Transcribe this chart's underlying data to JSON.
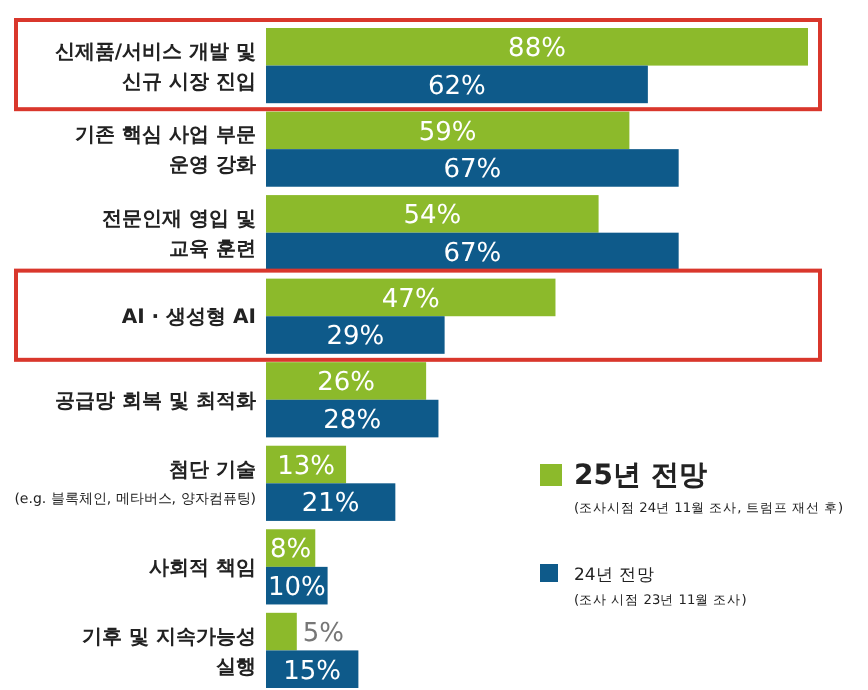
{
  "chart_data": {
    "type": "bar",
    "orientation": "horizontal",
    "categories": [
      "신제품/서비스 개발 및\n신규 시장 진입",
      "기존 핵심 사업 부문\n운영 강화",
      "전문인재 영입 및\n교육 훈련",
      "AI · 생성형 AI",
      "공급망 회복 및 최적화",
      "첨단 기술\n(e.g. 블록체인, 메타버스, 양자컴퓨팅)",
      "사회적 책임",
      "기후 및 지속가능성\n실행"
    ],
    "series": [
      {
        "name": "25년 전망\n(조사시점 24년 11월 조사, 트럼프 재선 후)",
        "color": "#8cba2b",
        "values": [
          88,
          59,
          54,
          47,
          26,
          13,
          8,
          5
        ],
        "value_labels": [
          "88%",
          "59%",
          "54%",
          "47%",
          "26%",
          "13%",
          "8%",
          "5%"
        ]
      },
      {
        "name": "24년 전망\n(조사 시점 23년 11월 조사)",
        "color": "#0e5a8a",
        "values": [
          62,
          67,
          67,
          29,
          28,
          21,
          10,
          15
        ],
        "value_labels": [
          "62%",
          "67%",
          "67%",
          "29%",
          "28%",
          "21%",
          "10%",
          "15%"
        ]
      }
    ],
    "legend": "right",
    "grid": false
  }
}
